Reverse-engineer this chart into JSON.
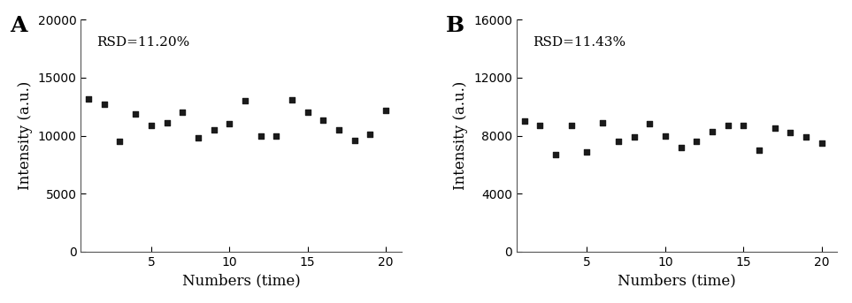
{
  "panel_A": {
    "label": "A",
    "rsd_text": "RSD=11.20%",
    "xlabel": "Numbers (time)",
    "ylabel": "Intensity (a.u.)",
    "ylim": [
      0,
      20000
    ],
    "yticks": [
      0,
      5000,
      10000,
      15000,
      20000
    ],
    "xlim": [
      0.5,
      21
    ],
    "xticks": [
      5,
      10,
      15,
      20
    ],
    "x": [
      1,
      2,
      3,
      4,
      5,
      6,
      7,
      8,
      9,
      10,
      11,
      12,
      13,
      14,
      15,
      16,
      17,
      18,
      19,
      20
    ],
    "y": [
      13200,
      12700,
      9500,
      11900,
      10900,
      11100,
      12000,
      9800,
      10500,
      11000,
      13000,
      10000,
      10000,
      13100,
      12000,
      11300,
      10500,
      9600,
      10100,
      12200
    ]
  },
  "panel_B": {
    "label": "B",
    "rsd_text": "RSD=11.43%",
    "xlabel": "Numbers (time)",
    "ylabel": "Intensity (a.u.)",
    "ylim": [
      0,
      16000
    ],
    "yticks": [
      0,
      4000,
      8000,
      12000,
      16000
    ],
    "xlim": [
      0.5,
      21
    ],
    "xticks": [
      5,
      10,
      15,
      20
    ],
    "x": [
      1,
      2,
      3,
      4,
      5,
      6,
      7,
      8,
      9,
      10,
      11,
      12,
      13,
      14,
      15,
      16,
      17,
      18,
      19,
      20
    ],
    "y": [
      9000,
      8700,
      6700,
      8700,
      6900,
      8900,
      7600,
      7900,
      8800,
      8000,
      7200,
      7600,
      8300,
      8700,
      8700,
      7000,
      8500,
      8200,
      7900,
      7500
    ]
  },
  "marker_color": "#1a1a1a",
  "marker_size": 22,
  "font_family": "DejaVu Serif",
  "label_fontsize": 12,
  "tick_fontsize": 10,
  "rsd_fontsize": 11,
  "panel_label_fontsize": 18,
  "bg_color": "#ffffff",
  "spine_color": "#555555"
}
